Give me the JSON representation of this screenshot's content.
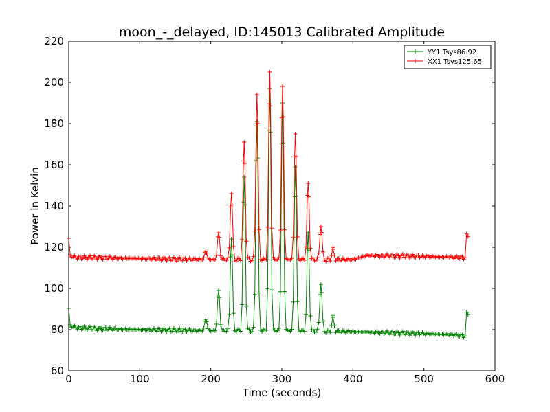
{
  "chart_data": {
    "type": "line",
    "title": "moon_-_delayed, ID:145013 Calibrated Amplitude",
    "xlabel": "Time (seconds)",
    "ylabel": "Power in Kelvin",
    "xlim": [
      0,
      600
    ],
    "ylim": [
      60,
      220
    ],
    "xticks": [
      0,
      100,
      200,
      300,
      400,
      500,
      600
    ],
    "yticks": [
      60,
      80,
      100,
      120,
      140,
      160,
      180,
      200,
      220
    ],
    "grid": false,
    "legend_position": "top-right",
    "sample_step": 2,
    "x_start": 0,
    "x_end": 562,
    "series": [
      {
        "name": "YY1 Tsys86.92",
        "color": "#008000",
        "marker": "+",
        "baseline": [
          [
            0,
            90
          ],
          [
            2,
            82
          ],
          [
            10,
            81
          ],
          [
            40,
            80.5
          ],
          [
            100,
            80
          ],
          [
            200,
            79.5
          ],
          [
            300,
            79.5
          ],
          [
            400,
            79
          ],
          [
            450,
            78.5
          ],
          [
            500,
            78
          ],
          [
            540,
            77.5
          ],
          [
            558,
            77
          ],
          [
            560,
            87.5
          ],
          [
            562,
            87.5
          ]
        ],
        "peaks": [
          {
            "x": 193,
            "height": 85
          },
          {
            "x": 211,
            "height": 99
          },
          {
            "x": 229,
            "height": 124
          },
          {
            "x": 247,
            "height": 154
          },
          {
            "x": 265,
            "height": 181
          },
          {
            "x": 283,
            "height": 197
          },
          {
            "x": 301,
            "height": 190
          },
          {
            "x": 319,
            "height": 159
          },
          {
            "x": 337,
            "height": 127
          },
          {
            "x": 355,
            "height": 102
          },
          {
            "x": 372,
            "height": 86
          }
        ]
      },
      {
        "name": "XX1 Tsys125.65",
        "color": "#ff0000",
        "marker": "+",
        "baseline": [
          [
            0,
            124
          ],
          [
            2,
            116
          ],
          [
            10,
            115
          ],
          [
            40,
            115
          ],
          [
            100,
            114.5
          ],
          [
            200,
            114
          ],
          [
            300,
            114
          ],
          [
            400,
            114
          ],
          [
            420,
            116
          ],
          [
            500,
            115.5
          ],
          [
            558,
            115
          ],
          [
            560,
            125.5
          ],
          [
            562,
            125.5
          ]
        ],
        "peaks": [
          {
            "x": 193,
            "height": 118
          },
          {
            "x": 211,
            "height": 127
          },
          {
            "x": 229,
            "height": 146
          },
          {
            "x": 247,
            "height": 171
          },
          {
            "x": 265,
            "height": 194
          },
          {
            "x": 283,
            "height": 205
          },
          {
            "x": 301,
            "height": 198
          },
          {
            "x": 319,
            "height": 175
          },
          {
            "x": 337,
            "height": 151
          },
          {
            "x": 355,
            "height": 130
          },
          {
            "x": 372,
            "height": 119
          }
        ]
      }
    ]
  }
}
